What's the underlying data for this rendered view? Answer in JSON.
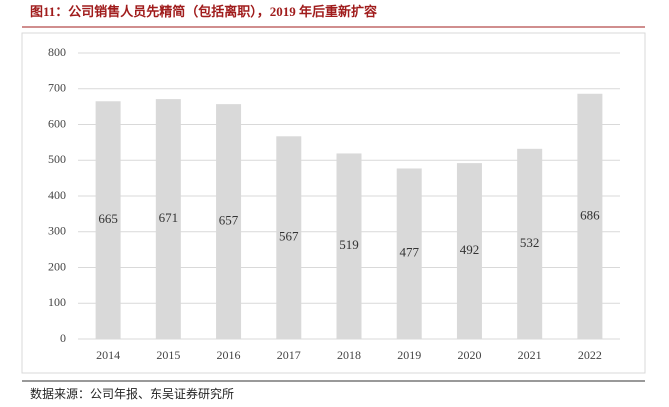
{
  "chart_data": {
    "type": "bar",
    "title": "图11：公司销售人员先精简（包括离职），2019 年后重新扩容",
    "source": "数据来源：公司年报、东吴证券研究所",
    "categories": [
      "2014",
      "2015",
      "2016",
      "2017",
      "2018",
      "2019",
      "2020",
      "2021",
      "2022"
    ],
    "values": [
      665,
      671,
      657,
      567,
      519,
      477,
      492,
      532,
      686
    ],
    "color": "#d9d9d9",
    "ylim": [
      0,
      800
    ],
    "yticks": [
      0,
      100,
      200,
      300,
      400,
      500,
      600,
      700,
      800
    ],
    "grid": true
  }
}
